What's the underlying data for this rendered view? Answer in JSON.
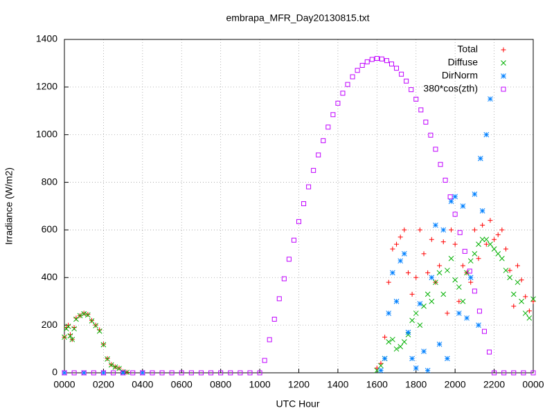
{
  "chart_data": {
    "type": "scatter",
    "title": "embrapa_MFR_Day20130815.txt",
    "x_label": "UTC Hour",
    "y_label": "Irradiance (W/m2)",
    "xlim": [
      0,
      24
    ],
    "ylim": [
      0,
      1400
    ],
    "xticks": [
      {
        "value": 0,
        "label": "0000"
      },
      {
        "value": 2,
        "label": "0200"
      },
      {
        "value": 4,
        "label": "0400"
      },
      {
        "value": 6,
        "label": "0600"
      },
      {
        "value": 8,
        "label": "0800"
      },
      {
        "value": 10,
        "label": "1000"
      },
      {
        "value": 12,
        "label": "1200"
      },
      {
        "value": 14,
        "label": "1400"
      },
      {
        "value": 16,
        "label": "1600"
      },
      {
        "value": 18,
        "label": "1800"
      },
      {
        "value": 20,
        "label": "2000"
      },
      {
        "value": 22,
        "label": "2200"
      },
      {
        "value": 24,
        "label": "0000"
      }
    ],
    "yticks": [
      0,
      200,
      400,
      600,
      800,
      1000,
      1200,
      1400
    ],
    "grid": true,
    "legend": "top-right",
    "series": [
      {
        "name": "Total",
        "color": "#ff0000",
        "marker": "plus",
        "x": [
          0,
          0.1,
          0.2,
          0.3,
          0.4,
          0.5,
          0.6,
          0.8,
          1,
          1.2,
          1.4,
          1.6,
          1.8,
          2,
          2.2,
          2.4,
          2.6,
          2.8,
          3,
          3.2,
          16,
          16.2,
          16.4,
          16.6,
          16.8,
          17,
          17.2,
          17.4,
          17.6,
          17.8,
          18,
          18.2,
          18.4,
          18.6,
          18.8,
          19,
          19.2,
          19.4,
          19.6,
          19.8,
          20,
          20.2,
          20.4,
          20.6,
          20.8,
          21,
          21.2,
          21.4,
          21.6,
          21.8,
          22,
          22.2,
          22.4,
          22.6,
          22.8,
          23,
          23.2,
          23.4,
          23.6,
          23.8,
          24
        ],
        "values": [
          150,
          190,
          200,
          160,
          140,
          190,
          230,
          240,
          250,
          245,
          220,
          200,
          180,
          120,
          60,
          35,
          25,
          20,
          5,
          2,
          20,
          40,
          150,
          380,
          520,
          540,
          570,
          600,
          420,
          330,
          400,
          600,
          500,
          420,
          560,
          380,
          450,
          550,
          250,
          600,
          540,
          300,
          450,
          420,
          380,
          600,
          480,
          620,
          540,
          640,
          560,
          580,
          600,
          520,
          430,
          280,
          450,
          390,
          320,
          260,
          300
        ]
      },
      {
        "name": "Diffuse",
        "color": "#00b000",
        "marker": "cross",
        "x": [
          0,
          0.1,
          0.2,
          0.3,
          0.4,
          0.5,
          0.6,
          0.8,
          1,
          1.2,
          1.4,
          1.6,
          1.8,
          2,
          2.2,
          2.4,
          2.6,
          2.8,
          3,
          3.2,
          16,
          16.2,
          16.4,
          16.6,
          16.8,
          17,
          17.2,
          17.4,
          17.6,
          17.8,
          18,
          18.2,
          18.4,
          18.6,
          18.8,
          19,
          19.2,
          19.4,
          19.6,
          19.8,
          20,
          20.2,
          20.4,
          20.6,
          20.8,
          21,
          21.2,
          21.4,
          21.6,
          21.8,
          22,
          22.2,
          22.4,
          22.6,
          22.8,
          23,
          23.2,
          23.4,
          23.6,
          23.8,
          24
        ],
        "values": [
          150,
          185,
          195,
          155,
          140,
          185,
          225,
          240,
          248,
          243,
          218,
          198,
          175,
          118,
          58,
          33,
          24,
          18,
          4,
          2,
          10,
          30,
          60,
          130,
          140,
          100,
          110,
          130,
          160,
          220,
          250,
          200,
          280,
          330,
          300,
          380,
          420,
          330,
          430,
          480,
          390,
          360,
          300,
          420,
          470,
          500,
          540,
          560,
          560,
          540,
          520,
          500,
          480,
          430,
          400,
          330,
          380,
          300,
          250,
          230,
          310
        ]
      },
      {
        "name": "DirNorm",
        "color": "#0080ff",
        "marker": "star",
        "x": [
          0,
          1,
          2,
          3,
          4,
          16.2,
          16.4,
          16.6,
          16.8,
          17,
          17.2,
          17.4,
          17.6,
          17.8,
          18,
          18.2,
          18.4,
          18.6,
          18.8,
          19,
          19.2,
          19.4,
          19.6,
          19.8,
          20,
          20.2,
          20.4,
          20.6,
          20.8,
          21,
          21.2,
          21.3,
          21.4,
          21.6,
          21.8
        ],
        "values": [
          0,
          0,
          0,
          0,
          0,
          10,
          60,
          250,
          420,
          300,
          470,
          500,
          170,
          60,
          20,
          290,
          90,
          10,
          400,
          620,
          120,
          600,
          60,
          720,
          740,
          250,
          700,
          230,
          400,
          750,
          200,
          900,
          680,
          1000,
          1150
        ]
      },
      {
        "name": "380*cos(zth)",
        "color": "#c000ff",
        "marker": "square",
        "x": [
          0,
          0.5,
          1,
          1.5,
          2,
          2.5,
          3,
          3.5,
          4,
          4.5,
          5,
          5.5,
          6,
          6.5,
          7,
          7.5,
          8,
          8.5,
          9,
          9.5,
          10,
          10.25,
          10.5,
          10.75,
          11,
          11.25,
          11.5,
          11.75,
          12,
          12.25,
          12.5,
          12.75,
          13,
          13.25,
          13.5,
          13.75,
          14,
          14.25,
          14.5,
          14.75,
          15,
          15.25,
          15.5,
          15.75,
          16,
          16.25,
          16.5,
          16.75,
          17,
          17.25,
          17.5,
          17.75,
          18,
          18.25,
          18.5,
          18.75,
          19,
          19.25,
          19.5,
          19.75,
          20,
          20.25,
          20.5,
          20.75,
          21,
          21.25,
          21.5,
          21.75,
          22,
          22.5,
          23,
          23.5,
          24
        ],
        "values": [
          0,
          0,
          0,
          0,
          0,
          0,
          0,
          0,
          0,
          0,
          0,
          0,
          0,
          0,
          0,
          0,
          0,
          0,
          0,
          0,
          0,
          52,
          139,
          225,
          311,
          395,
          477,
          557,
          635,
          710,
          781,
          850,
          915,
          975,
          1032,
          1084,
          1132,
          1174,
          1211,
          1243,
          1270,
          1291,
          1306,
          1316,
          1320,
          1318,
          1311,
          1297,
          1279,
          1254,
          1225,
          1189,
          1149,
          1104,
          1053,
          998,
          939,
          875,
          809,
          739,
          666,
          589,
          510,
          427,
          343,
          259,
          174,
          87,
          0,
          0,
          0,
          0,
          0
        ]
      }
    ]
  }
}
